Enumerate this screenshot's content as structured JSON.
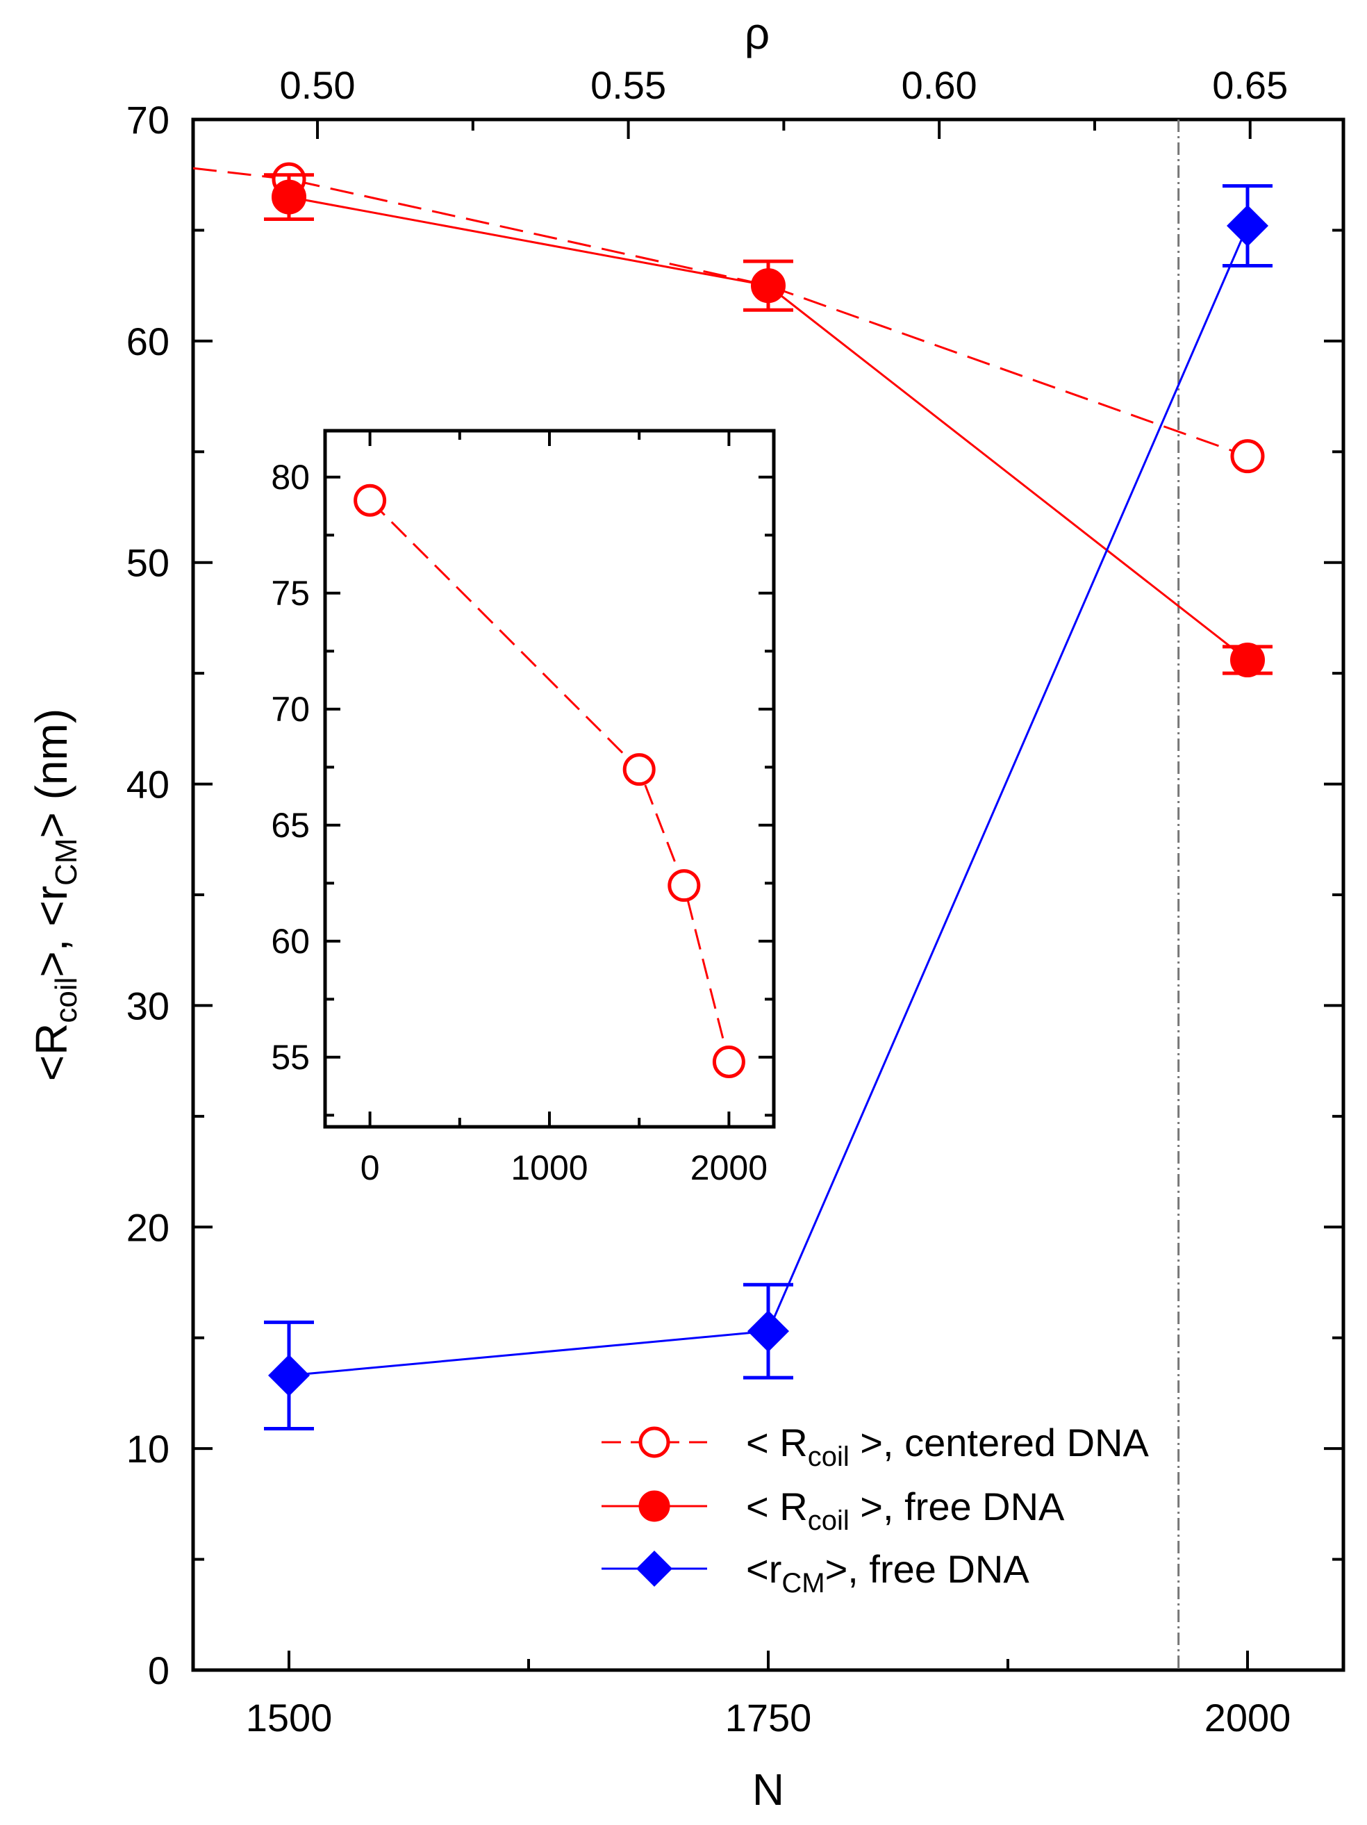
{
  "chart_data": [
    {
      "type": "line",
      "xlabel": "N",
      "ylabel": "<Rcoil>, <rCM>  (nm)",
      "ylabel_parts": {
        "lt1": "<",
        "R": "R",
        "coil": "coil",
        "gt_comma_lt": ">, <",
        "r": "r",
        "CM": "CM",
        "tail": ">  (nm)"
      },
      "xlim": [
        1450,
        2050
      ],
      "ylim": [
        0,
        70
      ],
      "xticks": [
        1500,
        1750,
        2000
      ],
      "xtick_labels": [
        "1500",
        "1750",
        "2000"
      ],
      "yticks": [
        0,
        10,
        20,
        30,
        40,
        50,
        60,
        70
      ],
      "ytick_labels": [
        "0",
        "10",
        "20",
        "30",
        "40",
        "50",
        "60",
        "70"
      ],
      "top_axis": {
        "label": "ρ",
        "ticks": [
          0.5,
          0.55,
          0.6,
          0.65
        ],
        "tick_labels": [
          "0.50",
          "0.55",
          "0.60",
          "0.65"
        ],
        "range": [
          0.48,
          0.665
        ]
      },
      "reference_line_x": 1964,
      "series": [
        {
          "name": "< Rcoil >, centered DNA",
          "label_main": "< R",
          "label_sub": "coil",
          "label_tail": " >, centered DNA",
          "color": "#ff0000",
          "marker": "open-circle",
          "line": "dashed",
          "x": [
            1500,
            1750,
            2000
          ],
          "y": [
            67.3,
            62.5,
            54.8
          ],
          "extends_left_to": [
            1450,
            67.8
          ]
        },
        {
          "name": "< Rcoil >, free DNA",
          "label_main": "< R",
          "label_sub": "coil",
          "label_tail": " >, free DNA",
          "color": "#ff0000",
          "marker": "filled-circle",
          "line": "solid",
          "x": [
            1500,
            1750,
            2000
          ],
          "y": [
            66.5,
            62.5,
            45.6
          ],
          "yerr": [
            1.0,
            1.1,
            0.6
          ]
        },
        {
          "name": "<rCM>, free DNA",
          "label_main": "<r",
          "label_sub": "CM",
          "label_tail": ">, free DNA",
          "color": "#0000ff",
          "marker": "filled-diamond",
          "line": "solid",
          "x": [
            1500,
            1750,
            2000
          ],
          "y": [
            13.3,
            15.3,
            65.2
          ],
          "yerr": [
            2.4,
            2.1,
            1.8
          ]
        }
      ],
      "legend_position": "bottom-right"
    },
    {
      "type": "line",
      "inset": true,
      "xlim": [
        -250,
        2250
      ],
      "ylim": [
        52,
        82
      ],
      "xticks": [
        0,
        1000,
        2000
      ],
      "xtick_labels": [
        "0",
        "1000",
        "2000"
      ],
      "yticks": [
        55,
        60,
        65,
        70,
        75,
        80
      ],
      "ytick_labels": [
        "55",
        "60",
        "65",
        "70",
        "75",
        "80"
      ],
      "series": [
        {
          "name": "centered DNA",
          "color": "#ff0000",
          "marker": "open-circle",
          "line": "dashed",
          "x": [
            0,
            1500,
            1750,
            2000
          ],
          "y": [
            79,
            67.4,
            62.4,
            54.8
          ]
        }
      ]
    }
  ]
}
